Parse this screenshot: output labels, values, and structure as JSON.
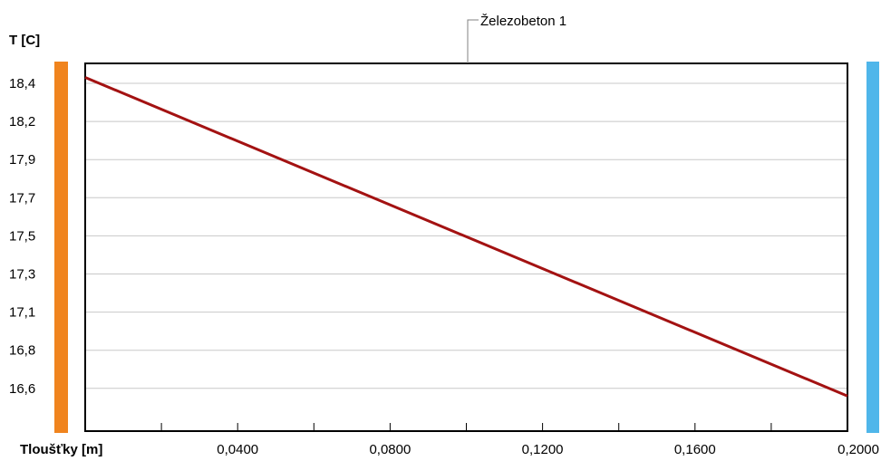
{
  "chart_data": {
    "type": "line",
    "ylabel": "T [C]",
    "xlabel": "Tloušťky [m]",
    "x_ticks": [
      "0,0400",
      "0,0800",
      "0,1200",
      "0,1600",
      "0,2000"
    ],
    "y_ticks": [
      "18,4",
      "18,2",
      "17,9",
      "17,7",
      "17,5",
      "17,3",
      "17,1",
      "16,8",
      "16,6"
    ],
    "xlim": [
      0,
      0.2
    ],
    "ylim": [
      16.4,
      18.5
    ],
    "grid": true,
    "series": [
      {
        "name": "Železobeton 1",
        "x": [
          0.0,
          0.2
        ],
        "y": [
          18.42,
          16.6
        ]
      }
    ],
    "boundary_colors": {
      "left": "#F0841E",
      "right": "#4FB6EA"
    },
    "line_color": "#A31212"
  }
}
